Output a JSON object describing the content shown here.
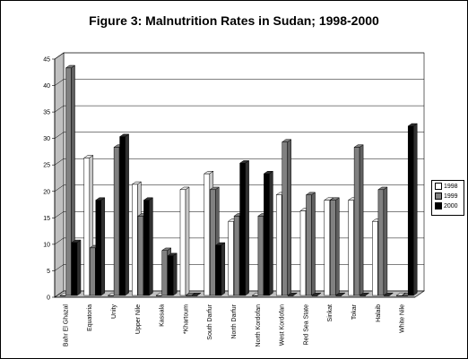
{
  "chart_data": {
    "type": "bar",
    "title": "Figure 3: Malnutrition Rates in Sudan; 1998-2000",
    "xlabel": "",
    "ylabel": "",
    "ylim": [
      0,
      45
    ],
    "yticks": [
      0,
      5,
      10,
      15,
      20,
      25,
      30,
      35,
      40,
      45
    ],
    "grid": true,
    "legend_position": "right",
    "categories": [
      "Bahr El Ghazal",
      "Equatoria",
      "Unity",
      "Upper Nile",
      "Kassala",
      "*Khartoum",
      "South Darfur",
      "North Darfur",
      "North Kordofan",
      "West Kordofan",
      "Red Sea State",
      "Sinkat",
      "Tokar",
      "Halaib",
      "White Nile"
    ],
    "series": [
      {
        "name": "1998",
        "color": "#ffffff",
        "values": [
          0,
          26,
          0,
          21,
          0,
          20,
          23,
          14,
          0,
          19,
          16,
          18,
          18,
          14,
          0
        ]
      },
      {
        "name": "1999",
        "color": "#808080",
        "values": [
          43,
          9,
          28,
          15,
          8.5,
          0,
          20,
          15,
          15,
          29,
          19,
          18,
          28,
          20,
          0
        ]
      },
      {
        "name": "2000",
        "color": "#000000",
        "values": [
          10,
          18,
          30,
          18,
          7.5,
          0,
          9.5,
          25,
          23,
          0,
          0,
          0,
          0,
          0,
          32
        ]
      }
    ]
  }
}
